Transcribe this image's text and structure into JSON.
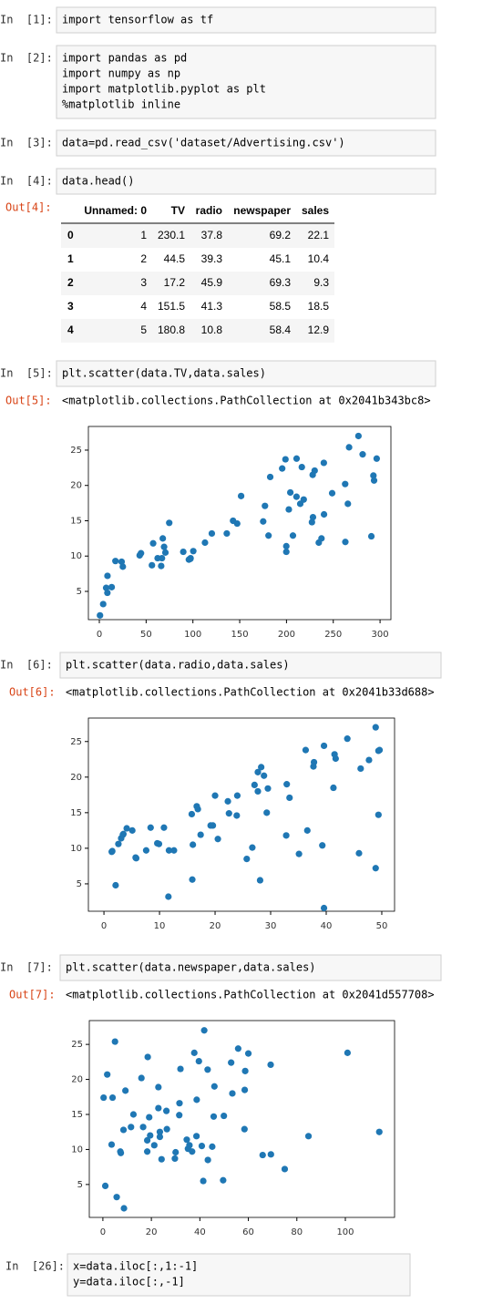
{
  "cells": [
    {
      "prompt": "In  [1]:",
      "code": [
        "import tensorflow as tf"
      ]
    },
    {
      "prompt": "In  [2]:",
      "code": [
        "import pandas as pd",
        "import numpy as np",
        "import matplotlib.pyplot as plt",
        "%matplotlib inline"
      ]
    },
    {
      "prompt": "In  [3]:",
      "code": [
        "data=pd.read_csv('dataset/Advertising.csv')"
      ]
    },
    {
      "prompt": "In  [4]:",
      "code": [
        "data.head()"
      ],
      "output_prompt": "Out[4]:",
      "table": {
        "header": [
          "Unnamed: 0",
          "TV",
          "radio",
          "newspaper",
          "sales"
        ],
        "rows": [
          [
            0,
            1,
            230.1,
            37.8,
            69.2,
            22.1
          ],
          [
            1,
            2,
            44.5,
            39.3,
            45.1,
            10.4
          ],
          [
            2,
            3,
            17.2,
            45.9,
            69.3,
            9.3
          ],
          [
            3,
            4,
            151.5,
            41.3,
            58.5,
            18.5
          ],
          [
            4,
            5,
            180.8,
            10.8,
            58.4,
            12.9
          ]
        ]
      }
    },
    {
      "prompt": "In  [5]:",
      "code": [
        "plt.scatter(data.TV,data.sales)"
      ],
      "output_prompt": "Out[5]:",
      "output_text": "<matplotlib.collections.PathCollection at 0x2041b343bc8>"
    },
    {
      "prompt": "In  [6]:",
      "code": [
        "plt.scatter(data.radio,data.sales)"
      ],
      "output_prompt": "Out[6]:",
      "output_text": "<matplotlib.collections.PathCollection at 0x2041b33d688>"
    },
    {
      "prompt": "In  [7]:",
      "code": [
        "plt.scatter(data.newspaper,data.sales)"
      ],
      "output_prompt": "Out[7]:",
      "output_text": "<matplotlib.collections.PathCollection at 0x2041d557708>"
    },
    {
      "prompt": "In  [26]:",
      "code": [
        "x=data.iloc[:,1:-1]",
        "y=data.iloc[:,-1]"
      ]
    }
  ],
  "chart_data": [
    {
      "type": "scatter",
      "color": "#1f77b4",
      "xlim": [
        -11.7,
        311.6
      ],
      "ylim": [
        1.0,
        28.35
      ],
      "xticks": [
        0,
        50,
        100,
        150,
        200,
        250,
        300
      ],
      "yticks": [
        5,
        10,
        15,
        20,
        25
      ],
      "x": [
        230.1,
        44.5,
        17.2,
        151.5,
        180.8,
        8.7,
        57.5,
        120.2,
        8.6,
        199.8,
        66.1,
        214.7,
        23.8,
        97.5,
        204.1,
        195.4,
        67.8,
        281.4,
        69.2,
        147.3,
        218.4,
        237.4,
        13.2,
        228.3,
        62.3,
        262.9,
        142.9,
        240.1,
        248.8,
        70.6,
        292.9,
        112.9,
        97.2,
        265.6,
        95.7,
        290.7,
        266.9,
        74.7,
        43.1,
        228,
        202.5,
        177,
        293.6,
        206.9,
        25.1,
        175.1,
        89.7,
        239.9,
        227.2,
        66.9,
        199.8,
        100.4,
        216.4,
        182.6,
        262.7,
        198.9,
        7.3,
        136.2,
        210.8,
        210.7,
        296.4,
        0.7,
        4.1,
        234.5,
        276.9,
        56.2
      ],
      "values": [
        22.1,
        10.4,
        9.3,
        18.5,
        12.9,
        7.2,
        11.8,
        13.2,
        4.8,
        10.6,
        8.6,
        17.4,
        9.2,
        9.7,
        19,
        22.4,
        12.5,
        24.4,
        11.3,
        14.6,
        18,
        12.5,
        5.6,
        15.5,
        9.7,
        12,
        15,
        15.9,
        18.9,
        10.5,
        21.4,
        11.9,
        9.6,
        17.4,
        9.5,
        12.8,
        25.4,
        14.7,
        10.1,
        21.5,
        16.6,
        17.1,
        20.7,
        12.9,
        8.5,
        14.9,
        10.6,
        23.2,
        14.8,
        9.7,
        11.4,
        10.7,
        22.6,
        21.2,
        20.2,
        23.7,
        5.5,
        13.2,
        23.8,
        18.4,
        23.8,
        1.6,
        3.2,
        11.9,
        27,
        8.7
      ]
    },
    {
      "type": "scatter",
      "color": "#1f77b4",
      "xlim": [
        -2.8,
        52.3
      ],
      "ylim": [
        1.15,
        28.3
      ],
      "xticks": [
        0,
        10,
        20,
        30,
        40,
        50
      ],
      "yticks": [
        5,
        10,
        15,
        20,
        25
      ],
      "x": [
        37.8,
        39.3,
        45.9,
        41.3,
        10.8,
        48.9,
        32.8,
        19.6,
        2.1,
        2.6,
        5.8,
        24,
        35.1,
        7.6,
        32.9,
        47.7,
        36.6,
        39.6,
        20.5,
        23.9,
        27.7,
        5.1,
        15.9,
        16.9,
        12.6,
        3.5,
        29.3,
        16.7,
        27.1,
        16,
        28.3,
        17.4,
        1.5,
        20,
        1.4,
        4.1,
        43.8,
        49.4,
        26.7,
        37.7,
        22.3,
        33.4,
        27.7,
        8.4,
        25.7,
        22.5,
        9.9,
        41.5,
        15.8,
        11.7,
        3.1,
        9.6,
        41.7,
        46.2,
        28.8,
        49.4,
        28.1,
        19.2,
        49.6,
        29.5,
        36.3,
        39.6,
        11.6,
        3.4,
        48.9,
        5.7
      ],
      "values": [
        22.1,
        10.4,
        9.3,
        18.5,
        12.9,
        7.2,
        11.8,
        13.2,
        4.8,
        10.6,
        8.6,
        17.4,
        9.2,
        9.7,
        19,
        22.4,
        12.5,
        24.4,
        11.3,
        14.6,
        18,
        12.5,
        5.6,
        15.5,
        9.7,
        12,
        15,
        15.9,
        18.9,
        10.5,
        21.4,
        11.9,
        9.6,
        17.4,
        9.5,
        12.8,
        25.4,
        14.7,
        10.1,
        21.5,
        16.6,
        17.1,
        20.7,
        12.9,
        8.5,
        14.9,
        10.6,
        23.2,
        14.8,
        9.7,
        11.4,
        10.7,
        22.6,
        21.2,
        20.2,
        23.7,
        5.5,
        13.2,
        23.8,
        18.4,
        23.8,
        1.6,
        3.2,
        11.9,
        27,
        8.7
      ]
    },
    {
      "type": "scatter",
      "color": "#1f77b4",
      "xlim": [
        -5.6,
        120.3
      ],
      "ylim": [
        0.3,
        28.4
      ],
      "xticks": [
        0,
        20,
        40,
        60,
        80,
        100
      ],
      "yticks": [
        5,
        10,
        15,
        20,
        25
      ],
      "x": [
        69.2,
        45.1,
        69.3,
        58.5,
        58.4,
        75,
        23.5,
        11.6,
        1,
        21.2,
        24.2,
        4,
        65.9,
        7.2,
        46,
        52.9,
        114,
        55.8,
        18.3,
        19.1,
        53.4,
        23.5,
        49.6,
        26.2,
        18.3,
        19.5,
        12.6,
        22.9,
        22.9,
        40.8,
        43.2,
        38.6,
        30,
        0.3,
        7.4,
        8.5,
        5,
        45.7,
        35.1,
        32,
        31.6,
        38.7,
        1.8,
        26.4,
        43.3,
        31.5,
        35.7,
        18.5,
        49.9,
        36.8,
        34.6,
        3.6,
        39.6,
        58.7,
        15.9,
        60,
        41.4,
        16.6,
        37.7,
        9.3,
        100.9,
        8.7,
        5.7,
        84.8,
        41.8,
        29.7
      ],
      "values": [
        22.1,
        10.4,
        9.3,
        18.5,
        12.9,
        7.2,
        11.8,
        13.2,
        4.8,
        10.6,
        8.6,
        17.4,
        9.2,
        9.7,
        19,
        22.4,
        12.5,
        24.4,
        11.3,
        14.6,
        18,
        12.5,
        5.6,
        15.5,
        9.7,
        12,
        15,
        15.9,
        18.9,
        10.5,
        21.4,
        11.9,
        9.6,
        17.4,
        9.5,
        12.8,
        25.4,
        14.7,
        10.1,
        21.5,
        16.6,
        17.1,
        20.7,
        12.9,
        8.5,
        14.9,
        10.6,
        23.2,
        14.8,
        9.7,
        11.4,
        10.7,
        22.6,
        21.2,
        20.2,
        23.7,
        5.5,
        13.2,
        23.8,
        18.4,
        23.8,
        1.6,
        3.2,
        11.9,
        27,
        8.7
      ]
    }
  ]
}
